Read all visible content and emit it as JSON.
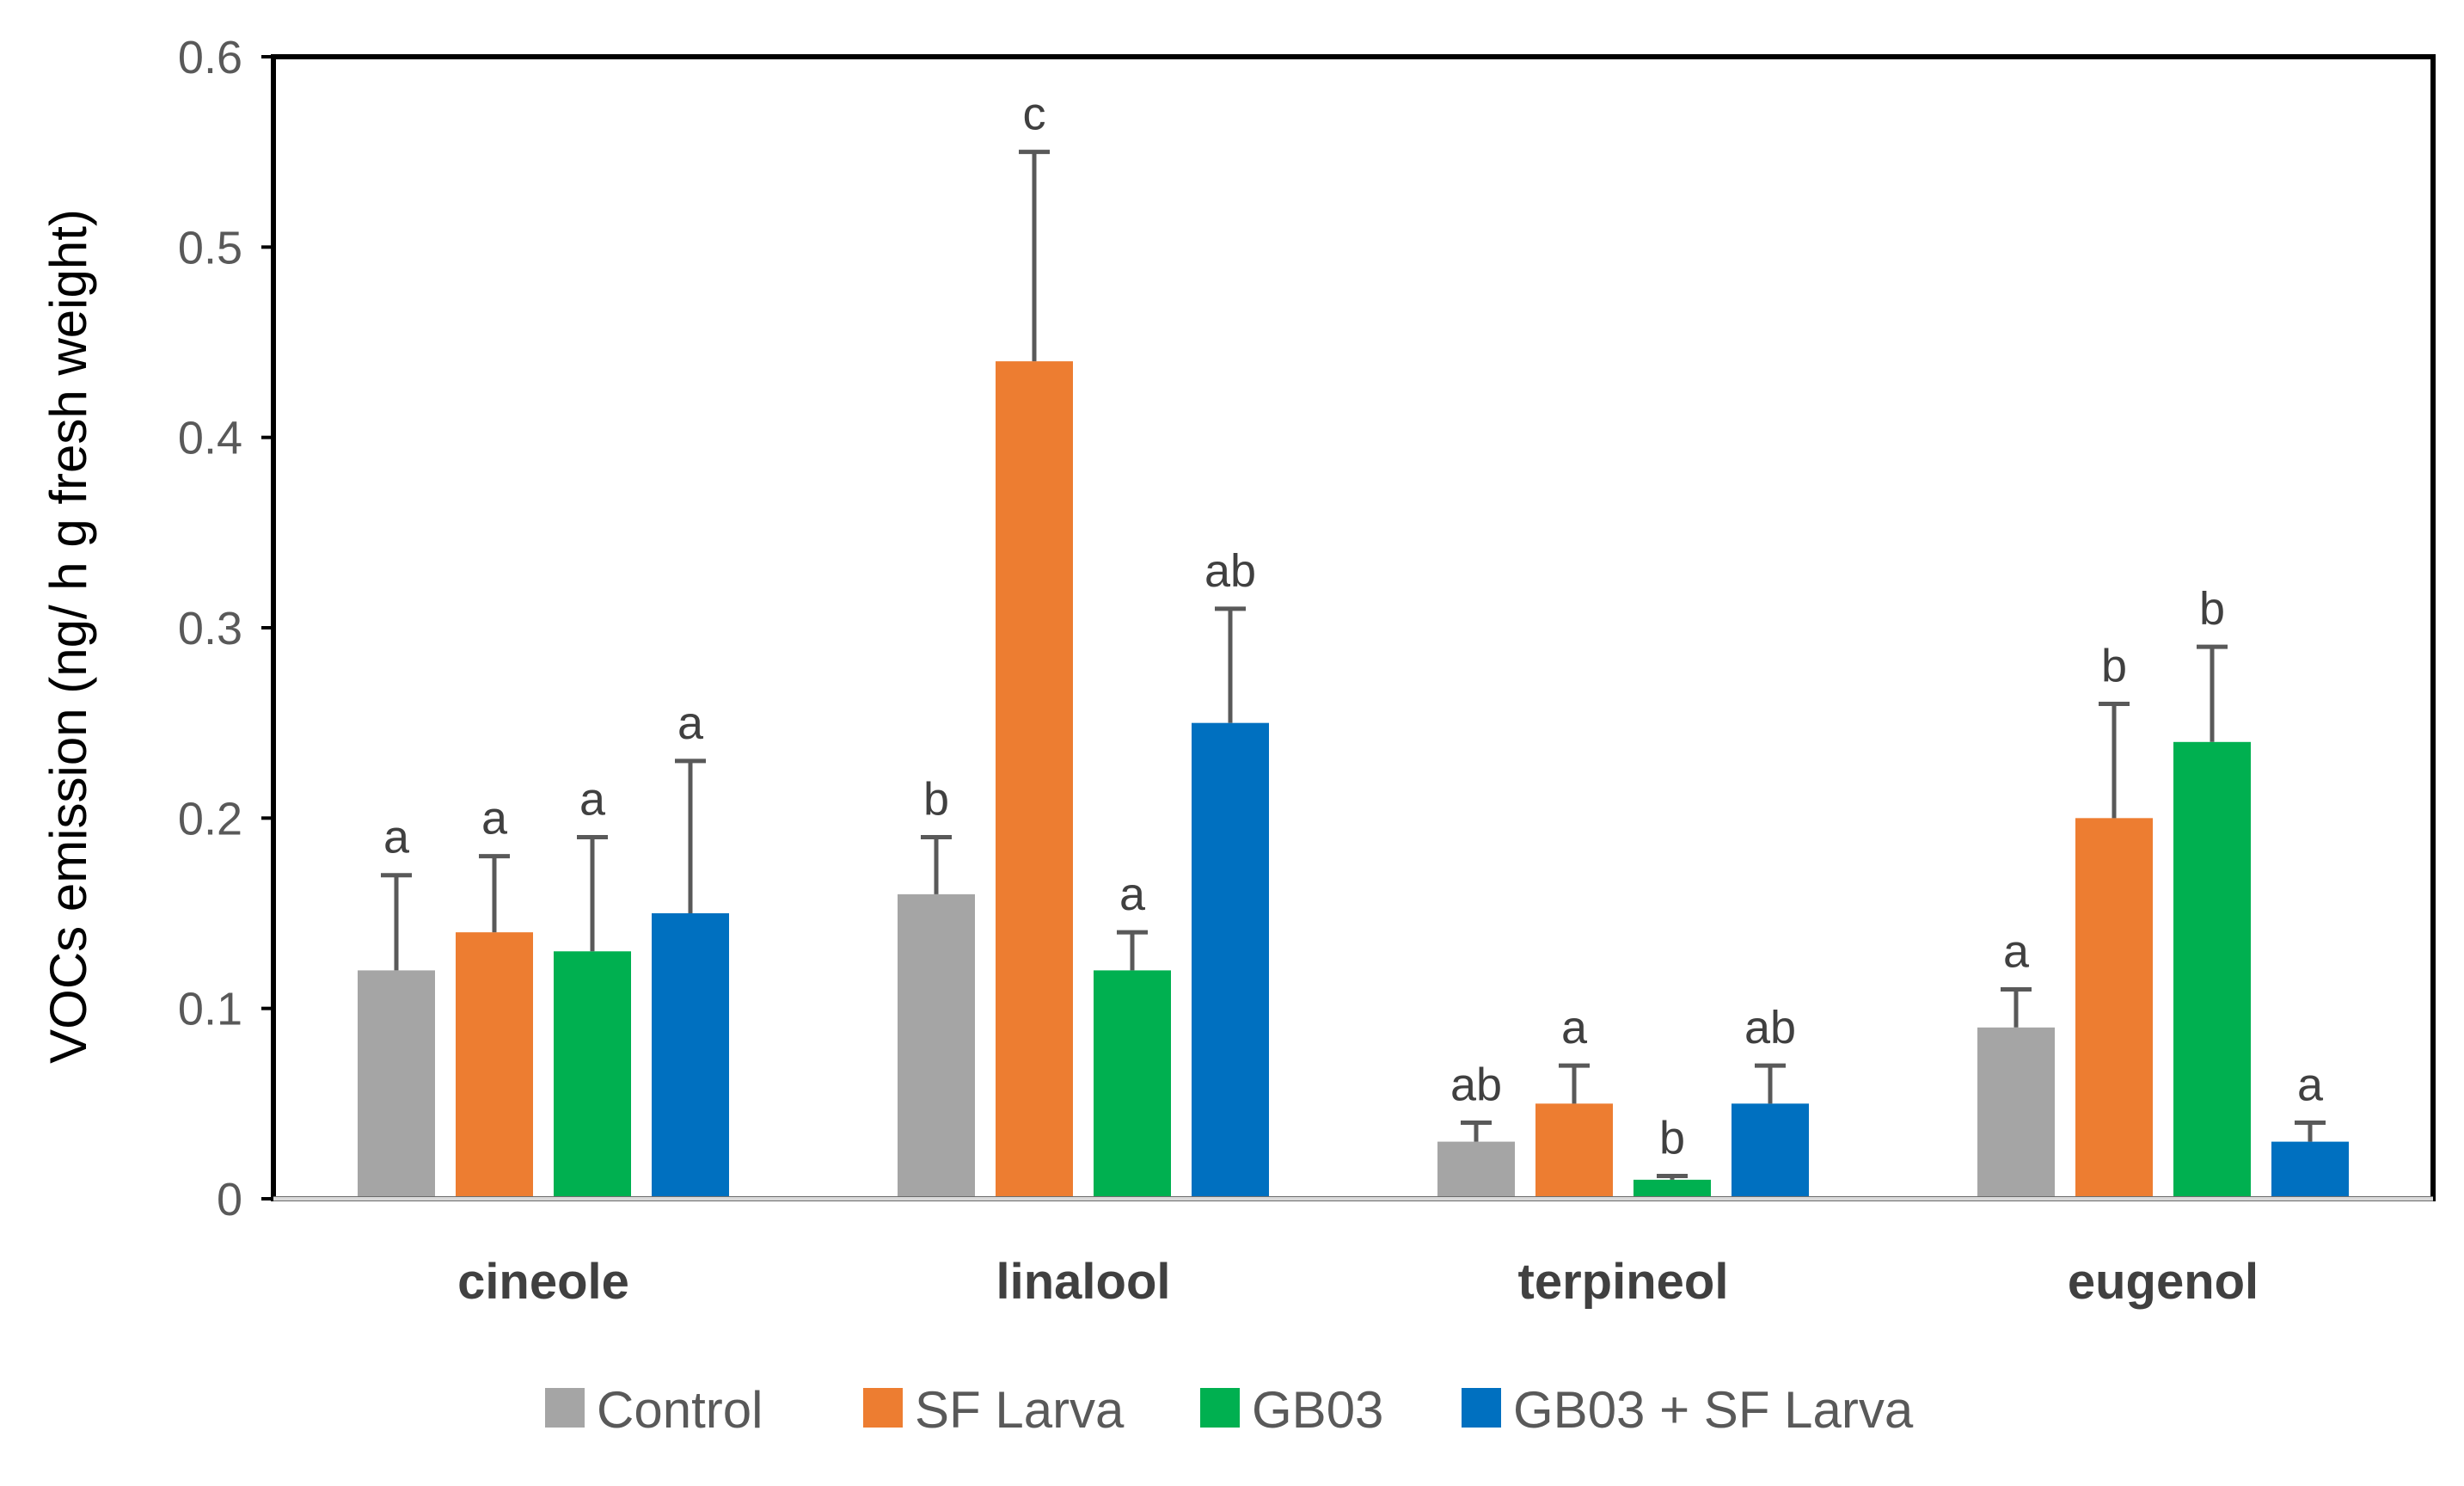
{
  "chart_data": {
    "type": "bar",
    "title": "",
    "xlabel": "",
    "ylabel": "VOCs emission (ng/ h g fresh weight)",
    "ylim": [
      0,
      0.6
    ],
    "yticks": [
      "0",
      "0.1",
      "0.2",
      "0.3",
      "0.4",
      "0.5",
      "0.6"
    ],
    "grid": false,
    "legend_position": "bottom",
    "categories": [
      "cineole",
      "linalool",
      "terpineol",
      "eugenol"
    ],
    "series": [
      {
        "name": "Control",
        "color": "#A5A5A5",
        "values": [
          0.12,
          0.16,
          0.03,
          0.09
        ],
        "errors": [
          0.05,
          0.03,
          0.01,
          0.02
        ],
        "labels": [
          "a",
          "b",
          "ab",
          "a"
        ]
      },
      {
        "name": "SF Larva",
        "color": "#ED7D31",
        "values": [
          0.14,
          0.44,
          0.05,
          0.2
        ],
        "errors": [
          0.04,
          0.11,
          0.02,
          0.06
        ],
        "labels": [
          "a",
          "c",
          "a",
          "b"
        ]
      },
      {
        "name": "GB03",
        "color": "#00B050",
        "values": [
          0.13,
          0.12,
          0.01,
          0.24
        ],
        "errors": [
          0.06,
          0.02,
          0.002,
          0.05
        ],
        "labels": [
          "a",
          "a",
          "b",
          "b"
        ]
      },
      {
        "name": "GB03 + SF Larva",
        "color": "#0070C0",
        "values": [
          0.15,
          0.25,
          0.05,
          0.03
        ],
        "errors": [
          0.08,
          0.06,
          0.02,
          0.01
        ],
        "labels": [
          "a",
          "ab",
          "ab",
          "a"
        ]
      }
    ]
  }
}
